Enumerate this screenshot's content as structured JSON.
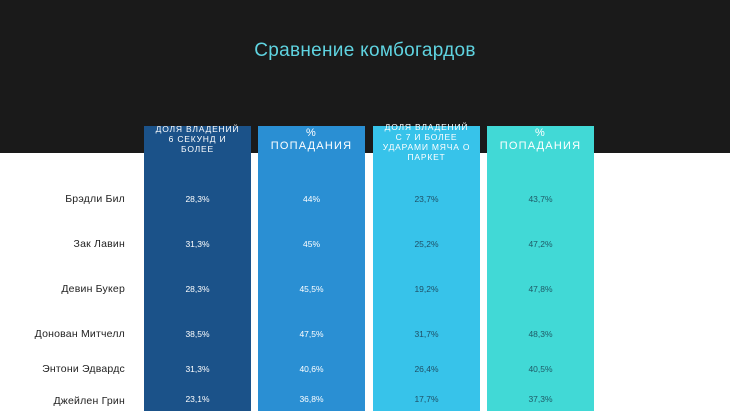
{
  "title": "Сравнение комбогардов",
  "chart_data": {
    "type": "table",
    "title": "Сравнение комбогардов",
    "columns": [
      "Доля владений 6 секунд и более",
      "% попадания",
      "Доля владений с 7 и более ударами мяча о паркет",
      "% попадания"
    ],
    "column_colors": [
      "#1b5289",
      "#2a8fd3",
      "#37c3ea",
      "#41d9d6"
    ],
    "rows": [
      {
        "player": "Брэдли Бил",
        "values": [
          "28,3%",
          "44%",
          "23,7%",
          "43,7%"
        ]
      },
      {
        "player": "Зак Лавин",
        "values": [
          "31,3%",
          "45%",
          "25,2%",
          "47,2%"
        ]
      },
      {
        "player": "Девин Букер",
        "values": [
          "28,3%",
          "45,5%",
          "19,2%",
          "47,8%"
        ]
      },
      {
        "player": "Донован Митчелл",
        "values": [
          "38,5%",
          "47,5%",
          "31,7%",
          "48,3%"
        ]
      },
      {
        "player": "Энтони Эдвардс",
        "values": [
          "31,3%",
          "40,6%",
          "26,4%",
          "40,5%"
        ]
      },
      {
        "player": "Джейлен Грин",
        "values": [
          "23,1%",
          "36,8%",
          "17,7%",
          "37,3%"
        ]
      }
    ]
  }
}
